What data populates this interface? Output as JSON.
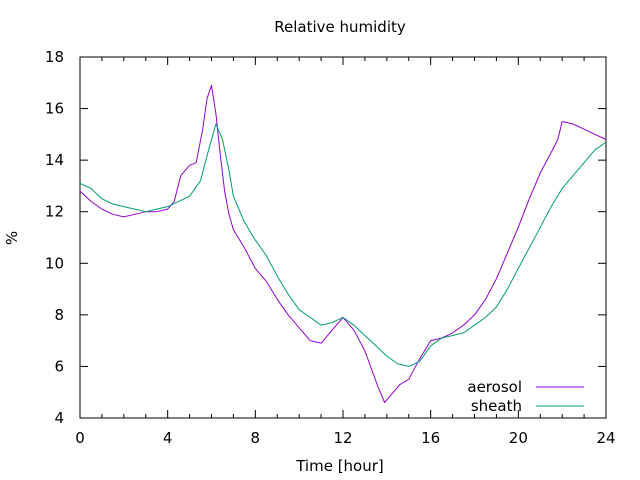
{
  "chart_data": {
    "type": "line",
    "title": "Relative humidity",
    "xlabel": "Time [hour]",
    "ylabel": "%",
    "xlim": [
      0,
      24
    ],
    "ylim": [
      4,
      18
    ],
    "xticks": [
      0,
      4,
      8,
      12,
      16,
      20,
      24
    ],
    "yticks": [
      4,
      6,
      8,
      10,
      12,
      14,
      16,
      18
    ],
    "grid": false,
    "legend_position": "bottom-right",
    "series": [
      {
        "name": "aerosol",
        "color": "#9400d3",
        "x": [
          0,
          0.5,
          1,
          1.5,
          2,
          2.5,
          3,
          3.5,
          4,
          4.3,
          4.6,
          5,
          5.3,
          5.6,
          5.8,
          6,
          6.2,
          6.4,
          6.6,
          6.8,
          7,
          7.5,
          8,
          8.5,
          9,
          9.5,
          10,
          10.5,
          11,
          11.5,
          12,
          12.5,
          13,
          13.3,
          13.6,
          13.9,
          14.2,
          14.6,
          15,
          15.5,
          16,
          16.5,
          17,
          17.5,
          18,
          18.5,
          19,
          19.5,
          20,
          20.5,
          21,
          21.5,
          21.8,
          22,
          22.5,
          23,
          23.5,
          24
        ],
        "y": [
          12.8,
          12.4,
          12.1,
          11.9,
          11.8,
          11.9,
          12.0,
          12.0,
          12.1,
          12.4,
          13.4,
          13.8,
          13.9,
          15.2,
          16.4,
          16.9,
          15.8,
          14.2,
          12.8,
          11.9,
          11.3,
          10.6,
          9.8,
          9.3,
          8.6,
          8.0,
          7.5,
          7.0,
          6.9,
          7.4,
          7.9,
          7.4,
          6.6,
          5.9,
          5.2,
          4.6,
          4.9,
          5.3,
          5.5,
          6.3,
          7.0,
          7.1,
          7.3,
          7.6,
          8.0,
          8.6,
          9.4,
          10.4,
          11.4,
          12.5,
          13.5,
          14.3,
          14.8,
          15.5,
          15.4,
          15.2,
          15.0,
          14.8
        ]
      },
      {
        "name": "sheath",
        "color": "#009e73",
        "x": [
          0,
          0.5,
          1,
          1.5,
          2,
          2.5,
          3,
          3.5,
          4,
          4.5,
          5,
          5.5,
          5.9,
          6.2,
          6.5,
          6.8,
          7,
          7.5,
          8,
          8.5,
          9,
          9.5,
          10,
          10.5,
          11,
          11.5,
          12,
          12.5,
          13,
          13.5,
          14,
          14.5,
          15,
          15.5,
          16,
          16.5,
          17,
          17.5,
          18,
          18.5,
          19,
          19.5,
          20,
          20.5,
          21,
          21.5,
          22,
          22.5,
          23,
          23.5,
          24
        ],
        "y": [
          13.1,
          12.9,
          12.5,
          12.3,
          12.2,
          12.1,
          12.0,
          12.1,
          12.2,
          12.4,
          12.6,
          13.2,
          14.5,
          15.4,
          14.8,
          13.6,
          12.6,
          11.6,
          10.9,
          10.3,
          9.5,
          8.8,
          8.2,
          7.9,
          7.6,
          7.7,
          7.9,
          7.6,
          7.2,
          6.8,
          6.4,
          6.1,
          6.0,
          6.2,
          6.8,
          7.1,
          7.2,
          7.3,
          7.6,
          7.9,
          8.3,
          9.0,
          9.8,
          10.6,
          11.4,
          12.2,
          12.9,
          13.4,
          13.9,
          14.4,
          14.7
        ]
      }
    ]
  }
}
